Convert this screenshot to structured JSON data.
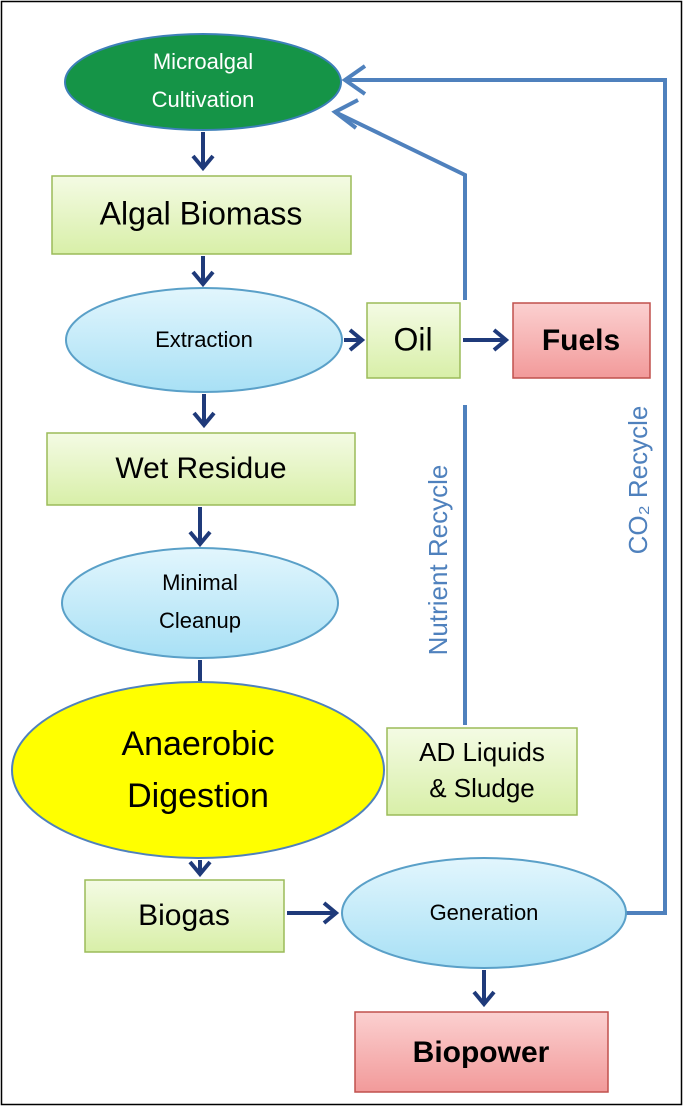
{
  "nodes": [
    {
      "label": [
        "Microalgal",
        "Cultivation"
      ]
    },
    {
      "label": [
        "Algal Biomass"
      ]
    },
    {
      "label": [
        "Extraction"
      ]
    },
    {
      "label": [
        "Oil"
      ]
    },
    {
      "label": [
        "Fuels"
      ]
    },
    {
      "label": [
        "Wet Residue"
      ]
    },
    {
      "label": [
        "Minimal",
        "Cleanup"
      ]
    },
    {
      "label": [
        "Anaerobic",
        "Digestion"
      ]
    },
    {
      "label": [
        "AD Liquids",
        "& Sludge"
      ]
    },
    {
      "label": [
        "Biogas"
      ]
    },
    {
      "label": [
        "Generation"
      ]
    },
    {
      "label": [
        "Biopower"
      ]
    }
  ],
  "edges": [
    {
      "label": "Nutrient Recycle"
    },
    {
      "label": "CO₂ Recycle"
    }
  ]
}
